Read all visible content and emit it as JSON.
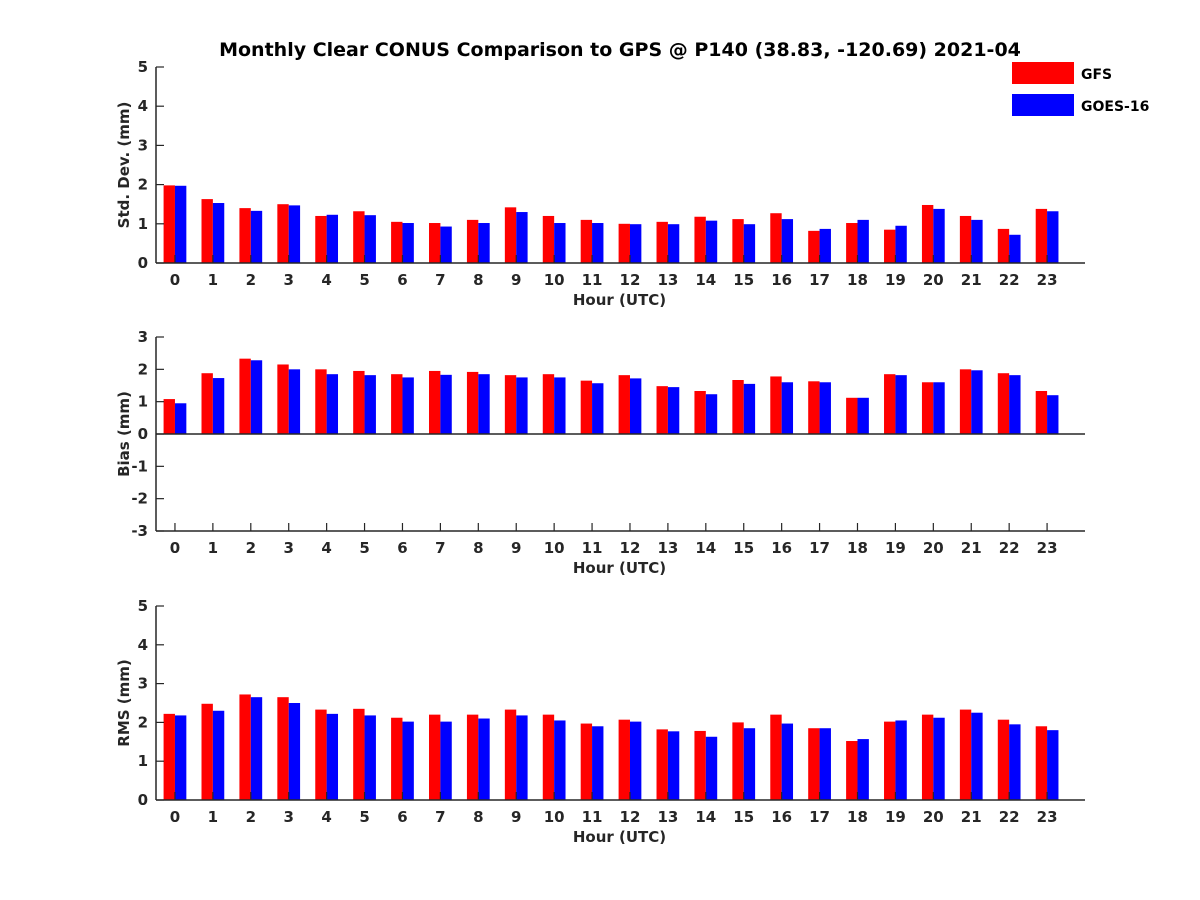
{
  "figure_title": "Monthly Clear CONUS Comparison to GPS @ P140 (38.83, -120.69) 2021-04",
  "colors": {
    "GFS": "#ff0000",
    "GOES-16": "#0000ff",
    "axis": "#262626"
  },
  "legend": {
    "position": "top-right",
    "entries": [
      "GFS",
      "GOES-16"
    ]
  },
  "chart_data": [
    {
      "type": "bar",
      "xlabel": "Hour (UTC)",
      "ylabel": "Std. Dev. (mm)",
      "ylim": [
        0,
        5
      ],
      "yticks": [
        0,
        1,
        2,
        3,
        4,
        5
      ],
      "categories": [
        "0",
        "1",
        "2",
        "3",
        "4",
        "5",
        "6",
        "7",
        "8",
        "9",
        "10",
        "11",
        "12",
        "13",
        "14",
        "15",
        "16",
        "17",
        "18",
        "19",
        "20",
        "21",
        "22",
        "23"
      ],
      "series": [
        {
          "name": "GFS",
          "values": [
            1.98,
            1.63,
            1.4,
            1.5,
            1.2,
            1.32,
            1.05,
            1.02,
            1.1,
            1.42,
            1.2,
            1.1,
            1.0,
            1.05,
            1.18,
            1.12,
            1.27,
            0.82,
            1.02,
            0.85,
            1.48,
            1.2,
            0.87,
            1.38
          ]
        },
        {
          "name": "GOES-16",
          "values": [
            1.97,
            1.53,
            1.33,
            1.47,
            1.23,
            1.22,
            1.02,
            0.93,
            1.02,
            1.3,
            1.02,
            1.02,
            0.99,
            0.99,
            1.08,
            0.99,
            1.12,
            0.87,
            1.1,
            0.95,
            1.38,
            1.1,
            0.72,
            1.32
          ]
        }
      ]
    },
    {
      "type": "bar",
      "xlabel": "Hour (UTC)",
      "ylabel": "Bias (mm)",
      "ylim": [
        -3,
        3
      ],
      "yticks": [
        -3,
        -2,
        -1,
        0,
        1,
        2,
        3
      ],
      "categories": [
        "0",
        "1",
        "2",
        "3",
        "4",
        "5",
        "6",
        "7",
        "8",
        "9",
        "10",
        "11",
        "12",
        "13",
        "14",
        "15",
        "16",
        "17",
        "18",
        "19",
        "20",
        "21",
        "22",
        "23"
      ],
      "series": [
        {
          "name": "GFS",
          "values": [
            1.08,
            1.88,
            2.33,
            2.15,
            2.0,
            1.95,
            1.85,
            1.95,
            1.92,
            1.82,
            1.85,
            1.65,
            1.82,
            1.48,
            1.33,
            1.67,
            1.78,
            1.63,
            1.12,
            1.85,
            1.6,
            2.0,
            1.88,
            1.33
          ]
        },
        {
          "name": "GOES-16",
          "values": [
            0.95,
            1.73,
            2.28,
            2.0,
            1.85,
            1.82,
            1.75,
            1.83,
            1.85,
            1.75,
            1.75,
            1.57,
            1.72,
            1.45,
            1.23,
            1.55,
            1.6,
            1.6,
            1.12,
            1.82,
            1.6,
            1.97,
            1.82,
            1.2
          ]
        }
      ]
    },
    {
      "type": "bar",
      "xlabel": "Hour (UTC)",
      "ylabel": "RMS (mm)",
      "ylim": [
        0,
        5
      ],
      "yticks": [
        0,
        1,
        2,
        3,
        4,
        5
      ],
      "categories": [
        "0",
        "1",
        "2",
        "3",
        "4",
        "5",
        "6",
        "7",
        "8",
        "9",
        "10",
        "11",
        "12",
        "13",
        "14",
        "15",
        "16",
        "17",
        "18",
        "19",
        "20",
        "21",
        "22",
        "23"
      ],
      "series": [
        {
          "name": "GFS",
          "values": [
            2.22,
            2.48,
            2.72,
            2.65,
            2.33,
            2.35,
            2.12,
            2.2,
            2.2,
            2.33,
            2.2,
            1.97,
            2.07,
            1.82,
            1.78,
            2.0,
            2.2,
            1.85,
            1.52,
            2.02,
            2.2,
            2.33,
            2.07,
            1.9
          ]
        },
        {
          "name": "GOES-16",
          "values": [
            2.18,
            2.3,
            2.65,
            2.5,
            2.22,
            2.18,
            2.02,
            2.02,
            2.1,
            2.18,
            2.05,
            1.9,
            2.02,
            1.77,
            1.63,
            1.85,
            1.97,
            1.85,
            1.57,
            2.05,
            2.12,
            2.25,
            1.95,
            1.8
          ]
        }
      ]
    }
  ]
}
